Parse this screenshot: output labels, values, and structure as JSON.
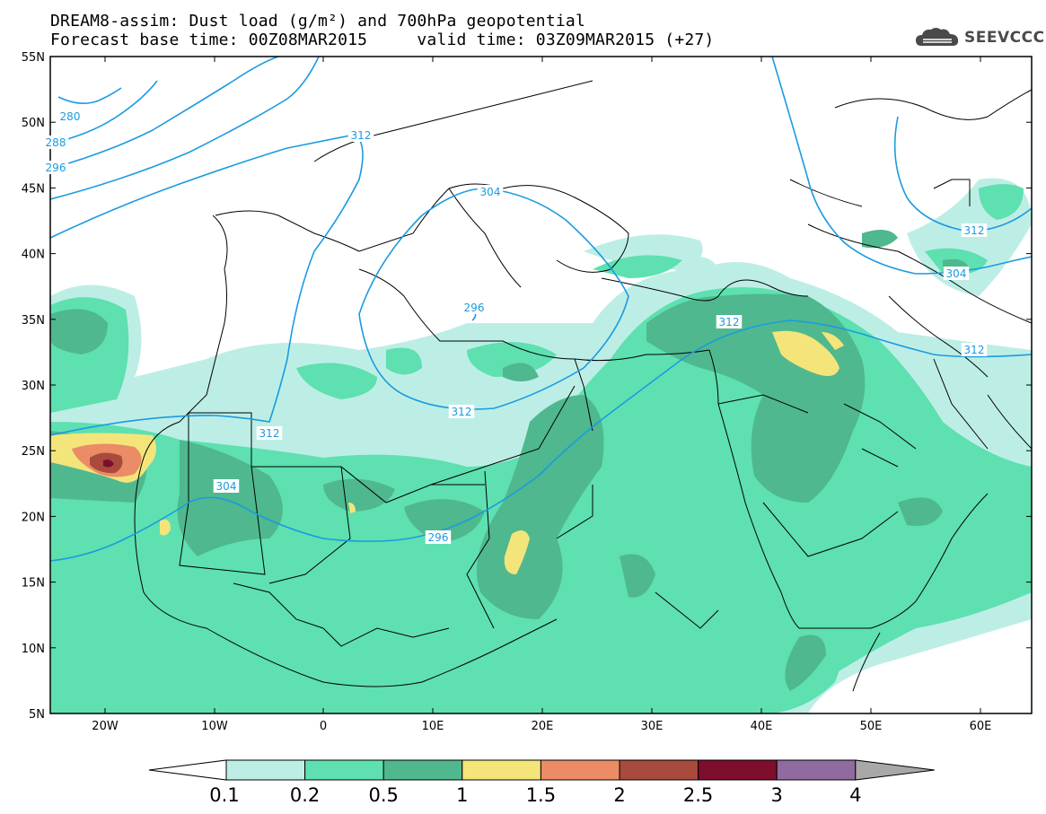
{
  "header": {
    "line1": "DREAM8-assim: Dust load (g/m²) and 700hPa geopotential",
    "line2": "Forecast base time: 00Z08MAR2015     valid time: 03Z09MAR2015 (+27)",
    "logo_text": "SEEVCCC",
    "logo_icon": "cloud-logo-icon"
  },
  "map": {
    "lat_labels": [
      "55N",
      "50N",
      "45N",
      "40N",
      "35N",
      "30N",
      "25N",
      "20N",
      "15N",
      "10N",
      "5N"
    ],
    "lon_labels": [
      "20W",
      "10W",
      "0",
      "10E",
      "20E",
      "30E",
      "40E",
      "50E",
      "60E"
    ],
    "contour_labels": [
      "280",
      "288",
      "296",
      "312",
      "304",
      "296",
      "312",
      "304",
      "296",
      "312",
      "312",
      "312",
      "304",
      "312"
    ],
    "contour_color": "#1a9be0"
  },
  "colorbar": {
    "ticks": [
      "0.1",
      "0.2",
      "0.5",
      "1",
      "1.5",
      "2",
      "2.5",
      "3",
      "4"
    ],
    "colors": [
      "#bdeee6",
      "#5ee0b0",
      "#4fb88e",
      "#f3e57a",
      "#eb8c66",
      "#a84a3c",
      "#7d0e2c",
      "#8f6ba0"
    ],
    "under_color": "#ffffff",
    "over_color": "#a8a8a8"
  }
}
